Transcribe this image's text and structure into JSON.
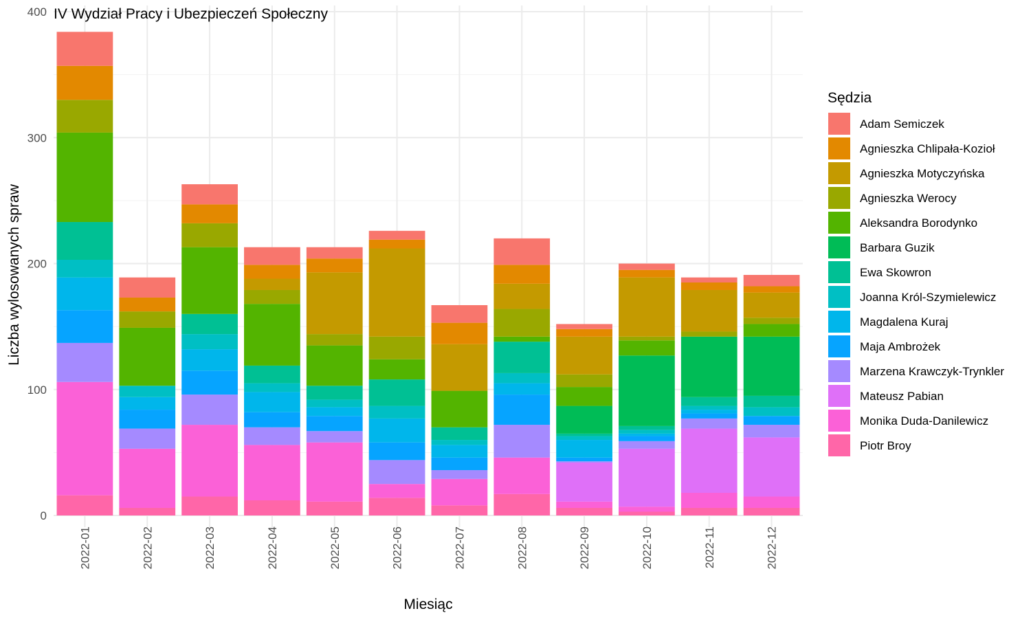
{
  "chart_data": {
    "type": "bar",
    "stacked": true,
    "title": "IV Wydział Pracy i Ubezpieczeń Społeczny",
    "xlabel": "Miesiąc",
    "ylabel": "Liczba wylosowanych spraw",
    "ylim": [
      0,
      400
    ],
    "yticks": [
      0,
      100,
      200,
      300,
      400
    ],
    "grid": true,
    "legend_title": "Sędzia",
    "legend_position": "right",
    "categories": [
      "2022-01",
      "2022-02",
      "2022-03",
      "2022-04",
      "2022-05",
      "2022-06",
      "2022-07",
      "2022-08",
      "2022-09",
      "2022-10",
      "2022-11",
      "2022-12"
    ],
    "series": [
      {
        "name": "Adam Semiczek",
        "color": "#F8766D",
        "values": [
          27,
          16,
          16,
          14,
          9,
          7,
          14,
          21,
          4,
          5,
          4,
          9
        ]
      },
      {
        "name": "Agnieszka Chlipała-Kozioł",
        "color": "#E38900",
        "values": [
          27,
          11,
          15,
          11,
          11,
          7,
          17,
          15,
          6,
          6,
          6,
          5
        ]
      },
      {
        "name": "Agnieszka Motyczyńska",
        "color": "#C49A00",
        "values": [
          0,
          0,
          0,
          9,
          49,
          70,
          37,
          20,
          30,
          47,
          33,
          20
        ]
      },
      {
        "name": "Agnieszka Werocy",
        "color": "#99A800",
        "values": [
          26,
          13,
          19,
          11,
          9,
          18,
          0,
          22,
          10,
          3,
          4,
          5
        ]
      },
      {
        "name": "Aleksandra Borodynko",
        "color": "#53B400",
        "values": [
          71,
          46,
          53,
          49,
          32,
          16,
          29,
          4,
          15,
          12,
          0,
          10
        ]
      },
      {
        "name": "Barbara Guzik",
        "color": "#00BC56",
        "values": [
          0,
          0,
          0,
          0,
          0,
          0,
          0,
          0,
          22,
          56,
          48,
          47
        ]
      },
      {
        "name": "Ewa Skowron",
        "color": "#00C094",
        "values": [
          30,
          0,
          16,
          14,
          11,
          21,
          10,
          25,
          2,
          3,
          7,
          9
        ]
      },
      {
        "name": "Joanna Król-Szymielewicz",
        "color": "#00BFC4",
        "values": [
          14,
          9,
          12,
          7,
          6,
          10,
          4,
          8,
          3,
          3,
          3,
          7
        ]
      },
      {
        "name": "Magdalena Kuraj",
        "color": "#00B6EB",
        "values": [
          26,
          10,
          17,
          16,
          7,
          19,
          10,
          9,
          14,
          2,
          3,
          0
        ]
      },
      {
        "name": "Maja Ambrożek",
        "color": "#06A4FF",
        "values": [
          26,
          15,
          19,
          12,
          12,
          14,
          10,
          24,
          3,
          4,
          4,
          7
        ]
      },
      {
        "name": "Marzena Krawczyk-Trynkler",
        "color": "#A58AFF",
        "values": [
          31,
          16,
          24,
          14,
          9,
          19,
          7,
          26,
          1,
          6,
          8,
          10
        ]
      },
      {
        "name": "Mateusz Pabian",
        "color": "#DF70F8",
        "values": [
          0,
          0,
          0,
          0,
          0,
          0,
          0,
          0,
          31,
          46,
          51,
          47
        ]
      },
      {
        "name": "Monika Duda-Danilewicz",
        "color": "#FB61D7",
        "values": [
          90,
          47,
          57,
          44,
          47,
          11,
          21,
          29,
          5,
          4,
          12,
          9
        ]
      },
      {
        "name": "Piotr Broy",
        "color": "#FF66A8",
        "values": [
          16,
          6,
          15,
          12,
          11,
          14,
          8,
          17,
          6,
          3,
          6,
          6
        ]
      }
    ]
  }
}
